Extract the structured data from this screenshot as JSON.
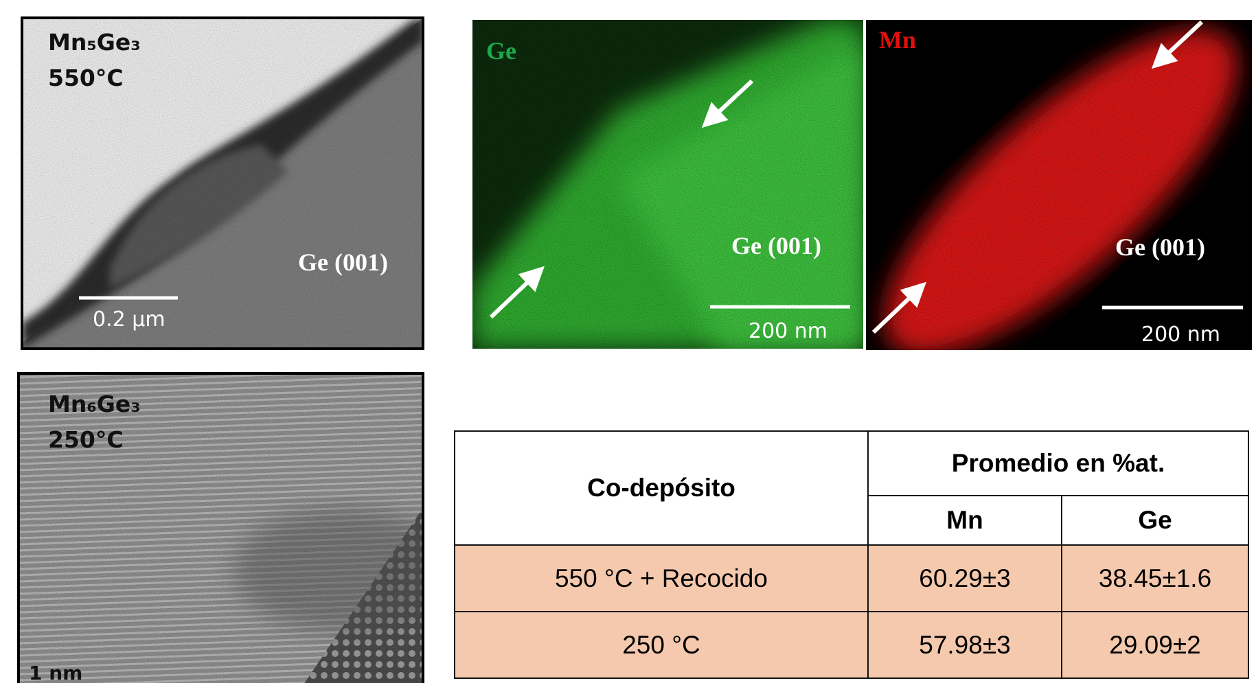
{
  "panels": [
    {
      "formula": "Mn₅Ge₃",
      "temperature": "550°C",
      "substrate": "Ge (001)",
      "scale_bar": "0.2 µm"
    },
    {
      "element": "Ge",
      "substrate": "Ge (001)",
      "scale_bar": "200 nm"
    },
    {
      "element": "Mn",
      "substrate": "Ge (001)",
      "scale_bar": "200 nm"
    },
    {
      "formula": "Mn₆Ge₃",
      "temperature": "250°C",
      "scale_bar": "1 nm"
    }
  ],
  "table": {
    "header": [
      "Co-depósito",
      "Promedio en %at."
    ],
    "subheader": [
      "Mn",
      "Ge"
    ],
    "rows": [
      [
        "550 °C + Recocido",
        "60.29±3",
        "38.45±1.6"
      ],
      [
        "250 °C",
        "57.98±3",
        "29.09±2"
      ]
    ]
  }
}
